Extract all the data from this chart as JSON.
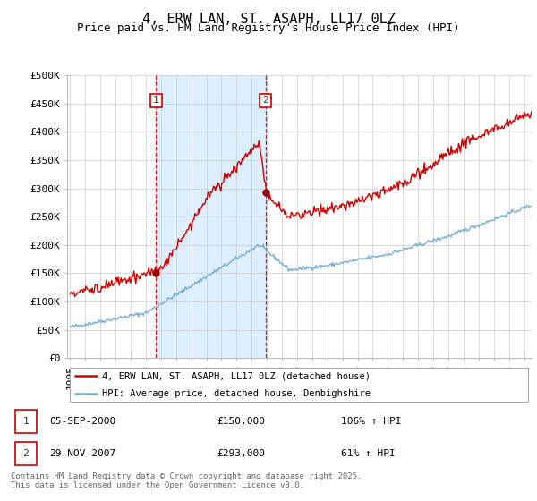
{
  "title": "4, ERW LAN, ST. ASAPH, LL17 0LZ",
  "subtitle": "Price paid vs. HM Land Registry's House Price Index (HPI)",
  "xlim": [
    1994.8,
    2025.5
  ],
  "ylim": [
    0,
    500000
  ],
  "yticks": [
    0,
    50000,
    100000,
    150000,
    200000,
    250000,
    300000,
    350000,
    400000,
    450000,
    500000
  ],
  "ytick_labels": [
    "£0",
    "£50K",
    "£100K",
    "£150K",
    "£200K",
    "£250K",
    "£300K",
    "£350K",
    "£400K",
    "£450K",
    "£500K"
  ],
  "red_line_color": "#cc0000",
  "blue_line_color": "#7ab0d4",
  "dashed_line_color": "#cc0000",
  "shade_color": "#ddeeff",
  "transaction1_x": 2000.68,
  "transaction1_y": 150000,
  "transaction1_label": "1",
  "transaction2_x": 2007.91,
  "transaction2_y": 293000,
  "transaction2_label": "2",
  "legend1_text": "4, ERW LAN, ST. ASAPH, LL17 0LZ (detached house)",
  "legend2_text": "HPI: Average price, detached house, Denbighshire",
  "table_row1": [
    "1",
    "05-SEP-2000",
    "£150,000",
    "106% ↑ HPI"
  ],
  "table_row2": [
    "2",
    "29-NOV-2007",
    "£293,000",
    "61% ↑ HPI"
  ],
  "footer": "Contains HM Land Registry data © Crown copyright and database right 2025.\nThis data is licensed under the Open Government Licence v3.0.",
  "background_color": "#ffffff",
  "grid_color": "#cccccc",
  "title_fontsize": 11,
  "subtitle_fontsize": 9,
  "axis_fontsize": 8
}
